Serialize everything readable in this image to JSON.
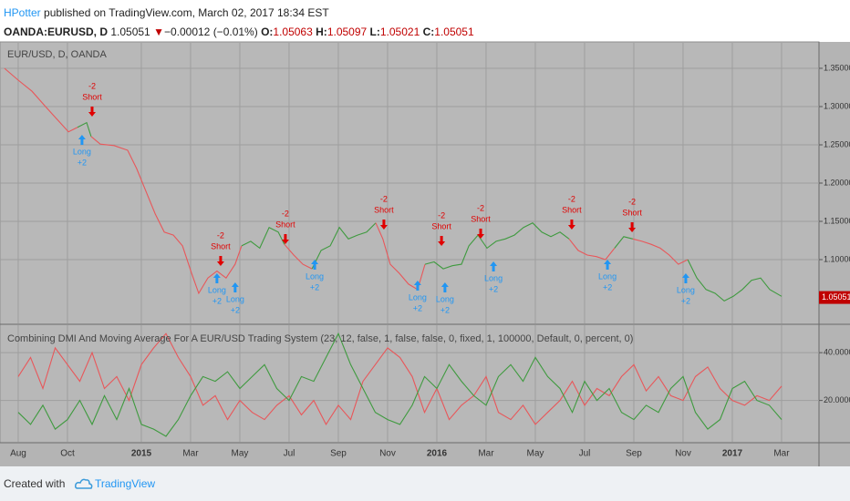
{
  "header": {
    "publisher": "HPotter",
    "published": "published on TradingView.com, March 02, 2017 18:34 EST",
    "symbol": "OANDA:EURUSD, D",
    "last": "1.05051",
    "arrow": "▼",
    "change": "−0.00012 (−0.01%)",
    "ohlc": [
      {
        "key": "O:",
        "value": "1.05063"
      },
      {
        "key": "H:",
        "value": "1.05097"
      },
      {
        "key": "L:",
        "value": "1.05021"
      },
      {
        "key": "C:",
        "value": "1.05051"
      }
    ]
  },
  "footer": {
    "text": "Created with",
    "brand": "TradingView"
  },
  "chart_data": [
    {
      "type": "line",
      "title": "EUR/USD, D, OANDA",
      "xlim": [
        -0.74,
        32.52
      ],
      "ylim": [
        1.0167,
        1.3833
      ],
      "yticks": [
        {
          "value": 1.1,
          "label": "1.10000"
        },
        {
          "value": 1.15,
          "label": "1.15000"
        },
        {
          "value": 1.2,
          "label": "1.20000"
        },
        {
          "value": 1.25,
          "label": "1.25000"
        },
        {
          "value": 1.3,
          "label": "1.30000"
        },
        {
          "value": 1.35,
          "label": "1.35000"
        }
      ],
      "grid": true,
      "series": [
        {
          "color": "#e8575a",
          "x": [
            -0.56,
            0,
            0.56,
            1.11,
            1.67,
            2.04,
            2.41
          ],
          "values": [
            1.35,
            1.3345,
            1.32,
            1.3,
            1.28,
            1.267,
            1.273
          ]
        },
        {
          "color": "#3f9a3f",
          "x": [
            2.41,
            2.78,
            2.96
          ],
          "values": [
            1.273,
            1.279,
            1.261
          ]
        },
        {
          "color": "#e8575a",
          "x": [
            2.96,
            3.33,
            3.89,
            4.44,
            4.81,
            5.19,
            5.56,
            5.93,
            6.3,
            6.67,
            7.04,
            7.33,
            7.7,
            8.07,
            8.44,
            8.81,
            9.07
          ],
          "values": [
            1.261,
            1.251,
            1.249,
            1.243,
            1.219,
            1.189,
            1.16,
            1.136,
            1.132,
            1.118,
            1.082,
            1.056,
            1.076,
            1.085,
            1.076,
            1.094,
            1.118
          ]
        },
        {
          "color": "#3f9a3f",
          "x": [
            9.07,
            9.44,
            9.81,
            10.19,
            10.56,
            10.81
          ],
          "values": [
            1.118,
            1.124,
            1.115,
            1.142,
            1.136,
            1.12
          ]
        },
        {
          "color": "#e8575a",
          "x": [
            10.81,
            11.19,
            11.56,
            11.93
          ],
          "values": [
            1.12,
            1.106,
            1.094,
            1.088
          ]
        },
        {
          "color": "#3f9a3f",
          "x": [
            11.93,
            12.3,
            12.67,
            13.04,
            13.41,
            13.78,
            14.15,
            14.52
          ],
          "values": [
            1.088,
            1.112,
            1.118,
            1.142,
            1.127,
            1.132,
            1.136,
            1.148
          ]
        },
        {
          "color": "#e8575a",
          "x": [
            14.52,
            14.81,
            15.11,
            15.48,
            15.85,
            16.22,
            16.52
          ],
          "values": [
            1.148,
            1.127,
            1.094,
            1.082,
            1.068,
            1.061,
            1.094
          ]
        },
        {
          "color": "#3f9a3f",
          "x": [
            16.52,
            16.89,
            17.26,
            17.63,
            18,
            18.3,
            18.67,
            19.04,
            19.41,
            19.78,
            20.15,
            20.52,
            20.89,
            21.26,
            21.63,
            22,
            22.37
          ],
          "values": [
            1.094,
            1.097,
            1.088,
            1.092,
            1.094,
            1.118,
            1.132,
            1.115,
            1.124,
            1.127,
            1.132,
            1.142,
            1.148,
            1.136,
            1.13,
            1.136,
            1.127
          ]
        },
        {
          "color": "#e8575a",
          "x": [
            22.37,
            22.74,
            23.11,
            23.48,
            23.85,
            24.22
          ],
          "values": [
            1.127,
            1.112,
            1.106,
            1.104,
            1.1,
            1.115
          ]
        },
        {
          "color": "#3f9a3f",
          "x": [
            24.22,
            24.59,
            24.96
          ],
          "values": [
            1.115,
            1.13,
            1.127
          ]
        },
        {
          "color": "#e8575a",
          "x": [
            24.96,
            25.33,
            25.7,
            26.07,
            26.44,
            26.81,
            27.19
          ],
          "values": [
            1.127,
            1.124,
            1.12,
            1.115,
            1.106,
            1.094,
            1.1
          ]
        },
        {
          "color": "#3f9a3f",
          "x": [
            27.19,
            27.56,
            27.93,
            28.3,
            28.67,
            29.04,
            29.41,
            29.78,
            30.15,
            30.52,
            31
          ],
          "values": [
            1.1,
            1.076,
            1.061,
            1.056,
            1.046,
            1.052,
            1.061,
            1.073,
            1.076,
            1.061,
            1.052
          ]
        }
      ],
      "signals": [
        {
          "label": "Short",
          "qty": "-2",
          "arrow": "down",
          "color": "#e00000",
          "x": 3.0,
          "price": 1.2869
        },
        {
          "label": "Short",
          "qty": "-2",
          "arrow": "down",
          "color": "#e00000",
          "x": 8.22,
          "price": 1.0917
        },
        {
          "label": "Short",
          "qty": "-2",
          "arrow": "down",
          "color": "#e00000",
          "x": 10.85,
          "price": 1.1202
        },
        {
          "label": "Short",
          "qty": "-2",
          "arrow": "down",
          "color": "#e00000",
          "x": 14.85,
          "price": 1.1393
        },
        {
          "label": "Short",
          "qty": "-2",
          "arrow": "down",
          "color": "#e00000",
          "x": 17.19,
          "price": 1.1179
        },
        {
          "label": "Short",
          "qty": "-2",
          "arrow": "down",
          "color": "#e00000",
          "x": 18.78,
          "price": 1.1274
        },
        {
          "label": "Short",
          "qty": "-2",
          "arrow": "down",
          "color": "#e00000",
          "x": 22.48,
          "price": 1.1393
        },
        {
          "label": "Short",
          "qty": "-2",
          "arrow": "down",
          "color": "#e00000",
          "x": 24.93,
          "price": 1.1357
        },
        {
          "label": "Long",
          "qty": "+2",
          "arrow": "up",
          "color": "#2196f3",
          "x": 2.59,
          "price": 1.2631
        },
        {
          "label": "Long",
          "qty": "+2",
          "arrow": "up",
          "color": "#2196f3",
          "x": 8.07,
          "price": 1.0821
        },
        {
          "label": "Long",
          "qty": "+2",
          "arrow": "up",
          "color": "#2196f3",
          "x": 8.81,
          "price": 1.0702
        },
        {
          "label": "Long",
          "qty": "+2",
          "arrow": "up",
          "color": "#2196f3",
          "x": 12.04,
          "price": 1.1
        },
        {
          "label": "Long",
          "qty": "+2",
          "arrow": "up",
          "color": "#2196f3",
          "x": 16.22,
          "price": 1.0726
        },
        {
          "label": "Long",
          "qty": "+2",
          "arrow": "up",
          "color": "#2196f3",
          "x": 17.33,
          "price": 1.0702
        },
        {
          "label": "Long",
          "qty": "+2",
          "arrow": "up",
          "color": "#2196f3",
          "x": 19.3,
          "price": 1.0976
        },
        {
          "label": "Long",
          "qty": "+2",
          "arrow": "up",
          "color": "#2196f3",
          "x": 23.93,
          "price": 1.1
        },
        {
          "label": "Long",
          "qty": "+2",
          "arrow": "up",
          "color": "#2196f3",
          "x": 27.11,
          "price": 1.0821
        }
      ],
      "last_price": {
        "value": 1.05051,
        "label": "1.05051",
        "color": "#c00000"
      }
    },
    {
      "type": "line",
      "title": "Combining DMI And Moving Average For A EUR/USD Trading System (23, 12, false, 1, false, false, 0, fixed, 1, 100000, Default, 0, percent, 0)",
      "xlim": [
        -0.74,
        32.52
      ],
      "ylim": [
        2.7,
        51.5
      ],
      "yticks": [
        {
          "value": 20,
          "label": "20.0000"
        },
        {
          "value": 40,
          "label": "40.0000"
        }
      ],
      "grid": true,
      "xticks": [
        {
          "value": 0,
          "label": "Aug"
        },
        {
          "value": 2,
          "label": "Oct"
        },
        {
          "value": 5,
          "label": "2015"
        },
        {
          "value": 7,
          "label": "Mar"
        },
        {
          "value": 9,
          "label": "May"
        },
        {
          "value": 11,
          "label": "Jul"
        },
        {
          "value": 13,
          "label": "Sep"
        },
        {
          "value": 15,
          "label": "Nov"
        },
        {
          "value": 17,
          "label": "2016"
        },
        {
          "value": 19,
          "label": "Mar"
        },
        {
          "value": 21,
          "label": "May"
        },
        {
          "value": 23,
          "label": "Jul"
        },
        {
          "value": 25,
          "label": "Sep"
        },
        {
          "value": 27,
          "label": "Nov"
        },
        {
          "value": 29,
          "label": "2017"
        },
        {
          "value": 31,
          "label": "Mar"
        }
      ],
      "x": [
        0,
        0.5,
        1,
        1.5,
        2,
        2.5,
        3,
        3.5,
        4,
        4.5,
        5,
        5.5,
        6,
        6.5,
        7,
        7.5,
        8,
        8.5,
        9,
        9.5,
        10,
        10.5,
        11,
        11.5,
        12,
        12.5,
        13,
        13.5,
        14,
        14.5,
        15,
        15.5,
        16,
        16.5,
        17,
        17.5,
        18,
        18.5,
        19,
        19.5,
        20,
        20.5,
        21,
        21.5,
        22,
        22.5,
        23,
        23.5,
        24,
        24.5,
        25,
        25.5,
        26,
        26.5,
        27,
        27.5,
        28,
        28.5,
        29,
        29.5,
        30,
        30.5,
        31
      ],
      "series": [
        {
          "color": "#e8575a",
          "values": [
            30,
            38,
            25,
            42,
            35,
            28,
            40,
            25,
            30,
            20,
            35,
            42,
            48,
            38,
            30,
            18,
            22,
            12,
            20,
            15,
            12,
            18,
            22,
            14,
            20,
            10,
            18,
            12,
            28,
            35,
            42,
            38,
            30,
            15,
            25,
            12,
            18,
            22,
            30,
            15,
            12,
            18,
            10,
            15,
            20,
            28,
            18,
            25,
            22,
            30,
            35,
            24,
            30,
            22,
            20,
            30,
            34,
            25,
            20,
            18,
            22,
            20,
            26
          ]
        },
        {
          "color": "#3f9a3f",
          "values": [
            15,
            10,
            18,
            8,
            12,
            20,
            10,
            22,
            12,
            25,
            10,
            8,
            5,
            12,
            22,
            30,
            28,
            32,
            25,
            30,
            35,
            25,
            20,
            30,
            28,
            38,
            48,
            35,
            25,
            15,
            12,
            10,
            18,
            30,
            25,
            35,
            28,
            22,
            18,
            30,
            35,
            28,
            38,
            30,
            25,
            15,
            28,
            20,
            25,
            15,
            12,
            18,
            15,
            25,
            30,
            15,
            8,
            12,
            25,
            28,
            20,
            18,
            12
          ]
        }
      ]
    }
  ]
}
